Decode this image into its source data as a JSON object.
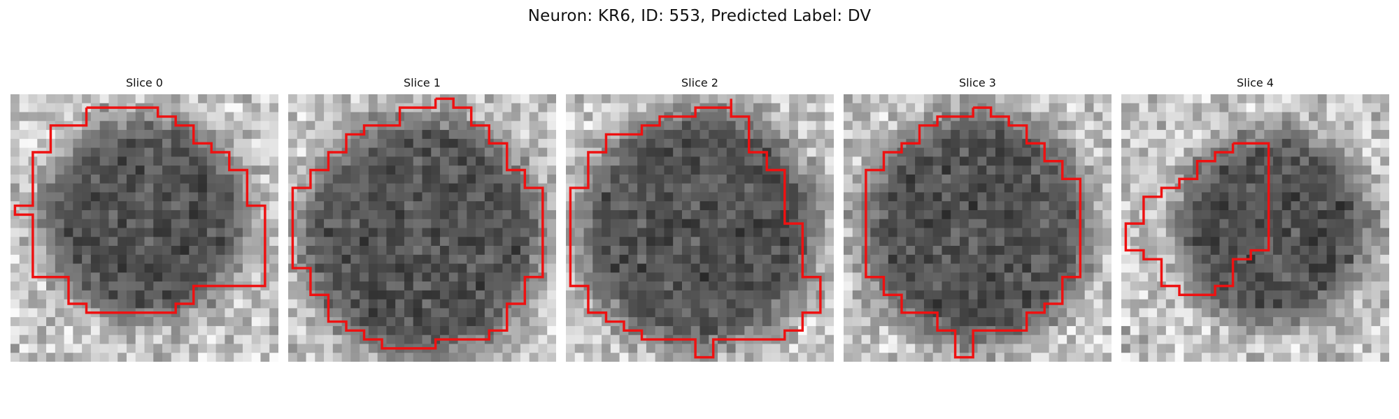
{
  "title": "Neuron: KR6, ID: 553, Predicted Label: DV",
  "panels": [
    {
      "title": "Slice 0",
      "seed": 11,
      "blob_center": [
        15,
        14
      ],
      "blob_radius": 11.5,
      "contour": [
        [
          4,
          1
        ],
        [
          4,
          3
        ],
        [
          2,
          3
        ],
        [
          2,
          6
        ],
        [
          1,
          6
        ],
        [
          1,
          12
        ],
        [
          0,
          12
        ],
        [
          0,
          13
        ],
        [
          1,
          13
        ],
        [
          1,
          20
        ],
        [
          3,
          20
        ],
        [
          3,
          23
        ],
        [
          4,
          23
        ],
        [
          4,
          24
        ],
        [
          9,
          24
        ],
        [
          9,
          23
        ],
        [
          10,
          23
        ],
        [
          10,
          21
        ],
        [
          14,
          21
        ],
        [
          14,
          12
        ],
        [
          13,
          12
        ],
        [
          13,
          8
        ],
        [
          12,
          8
        ],
        [
          12,
          6
        ],
        [
          11,
          6
        ],
        [
          11,
          5
        ],
        [
          10,
          5
        ],
        [
          10,
          3
        ],
        [
          9,
          3
        ],
        [
          9,
          2
        ],
        [
          8,
          2
        ],
        [
          8,
          1
        ]
      ]
    },
    {
      "title": "Slice 1",
      "seed": 23,
      "blob_center": [
        15,
        16
      ],
      "blob_radius": 13.5,
      "contour": [
        [
          8,
          0
        ],
        [
          8,
          1
        ],
        [
          6,
          1
        ],
        [
          6,
          3
        ],
        [
          4,
          3
        ],
        [
          4,
          4
        ],
        [
          3,
          4
        ],
        [
          3,
          6
        ],
        [
          2,
          6
        ],
        [
          2,
          8
        ],
        [
          1,
          8
        ],
        [
          1,
          10
        ],
        [
          0,
          10
        ],
        [
          0,
          16
        ],
        [
          0,
          19
        ],
        [
          1,
          19
        ],
        [
          1,
          22
        ],
        [
          2,
          22
        ],
        [
          2,
          25
        ],
        [
          3,
          25
        ],
        [
          3,
          26
        ],
        [
          4,
          26
        ],
        [
          4,
          27
        ],
        [
          5,
          27
        ],
        [
          5,
          28
        ],
        [
          8,
          28
        ],
        [
          8,
          27
        ],
        [
          11,
          27
        ],
        [
          11,
          26
        ],
        [
          12,
          26
        ],
        [
          12,
          23
        ],
        [
          13,
          23
        ],
        [
          13,
          20
        ],
        [
          14,
          20
        ],
        [
          14,
          10
        ],
        [
          13,
          10
        ],
        [
          13,
          8
        ],
        [
          12,
          8
        ],
        [
          12,
          5
        ],
        [
          11,
          5
        ],
        [
          11,
          3
        ],
        [
          10,
          3
        ],
        [
          10,
          1
        ],
        [
          9,
          1
        ],
        [
          9,
          0
        ]
      ]
    },
    {
      "title": "Slice 2",
      "seed": 37,
      "blob_center": [
        15,
        15
      ],
      "blob_radius": 13.5,
      "contour": [
        [
          9,
          0
        ],
        [
          9,
          1
        ],
        [
          7,
          1
        ],
        [
          7,
          2
        ],
        [
          5,
          2
        ],
        [
          5,
          3
        ],
        [
          4,
          3
        ],
        [
          4,
          4
        ],
        [
          2,
          4
        ],
        [
          2,
          6
        ],
        [
          1,
          6
        ],
        [
          1,
          10
        ],
        [
          0,
          10
        ],
        [
          0,
          21
        ],
        [
          1,
          21
        ],
        [
          1,
          24
        ],
        [
          2,
          24
        ],
        [
          2,
          25
        ],
        [
          3,
          25
        ],
        [
          3,
          26
        ],
        [
          4,
          26
        ],
        [
          4,
          27
        ],
        [
          7,
          27
        ],
        [
          7,
          29
        ],
        [
          8,
          29
        ],
        [
          8,
          27
        ],
        [
          12,
          27
        ],
        [
          12,
          26
        ],
        [
          13,
          26
        ],
        [
          13,
          24
        ],
        [
          14,
          24
        ],
        [
          14,
          20
        ],
        [
          13,
          20
        ],
        [
          13,
          14
        ],
        [
          12,
          14
        ],
        [
          12,
          8
        ],
        [
          11,
          8
        ],
        [
          11,
          6
        ],
        [
          10,
          6
        ],
        [
          10,
          2
        ],
        [
          9,
          2
        ],
        [
          9,
          1
        ]
      ]
    },
    {
      "title": "Slice 3",
      "seed": 53,
      "blob_center": [
        15,
        15
      ],
      "blob_radius": 13.0,
      "contour": [
        [
          7,
          1
        ],
        [
          7,
          2
        ],
        [
          5,
          2
        ],
        [
          5,
          3
        ],
        [
          4,
          3
        ],
        [
          4,
          5
        ],
        [
          3,
          5
        ],
        [
          3,
          6
        ],
        [
          2,
          6
        ],
        [
          2,
          8
        ],
        [
          1,
          8
        ],
        [
          1,
          12
        ],
        [
          1,
          20
        ],
        [
          2,
          20
        ],
        [
          2,
          22
        ],
        [
          3,
          22
        ],
        [
          3,
          24
        ],
        [
          5,
          24
        ],
        [
          5,
          26
        ],
        [
          6,
          26
        ],
        [
          6,
          29
        ],
        [
          7,
          29
        ],
        [
          7,
          26
        ],
        [
          10,
          26
        ],
        [
          10,
          24
        ],
        [
          11,
          24
        ],
        [
          11,
          23
        ],
        [
          12,
          23
        ],
        [
          12,
          20
        ],
        [
          13,
          20
        ],
        [
          13,
          9
        ],
        [
          12,
          9
        ],
        [
          12,
          7
        ],
        [
          11,
          7
        ],
        [
          11,
          5
        ],
        [
          10,
          5
        ],
        [
          10,
          3
        ],
        [
          9,
          3
        ],
        [
          9,
          2
        ],
        [
          8,
          2
        ],
        [
          8,
          1
        ]
      ]
    },
    {
      "title": "Slice 4",
      "seed": 71,
      "blob_center": [
        17,
        15
      ],
      "blob_radius": 11.0,
      "contour": [
        [
          6,
          5
        ],
        [
          6,
          6
        ],
        [
          5,
          6
        ],
        [
          5,
          7
        ],
        [
          4,
          7
        ],
        [
          4,
          9
        ],
        [
          3,
          9
        ],
        [
          3,
          10
        ],
        [
          2,
          10
        ],
        [
          2,
          11
        ],
        [
          1,
          11
        ],
        [
          1,
          14
        ],
        [
          0,
          14
        ],
        [
          0,
          17
        ],
        [
          1,
          17
        ],
        [
          1,
          18
        ],
        [
          2,
          18
        ],
        [
          2,
          21
        ],
        [
          3,
          21
        ],
        [
          3,
          22
        ],
        [
          5,
          22
        ],
        [
          5,
          21
        ],
        [
          6,
          21
        ],
        [
          6,
          18
        ],
        [
          7,
          18
        ],
        [
          7,
          17
        ],
        [
          8,
          17
        ],
        [
          8,
          11
        ],
        [
          8,
          5
        ],
        [
          7,
          5
        ]
      ]
    }
  ]
}
